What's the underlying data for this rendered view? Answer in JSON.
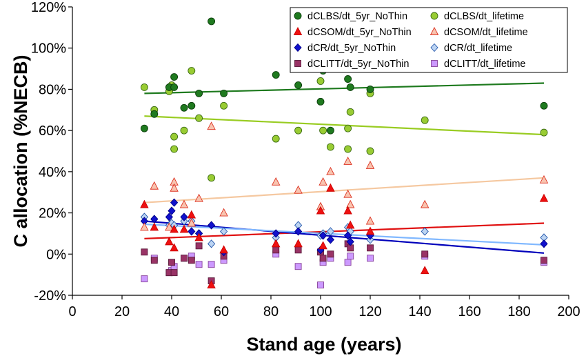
{
  "chart_data": {
    "type": "scatter",
    "xlabel": "Stand age (years)",
    "ylabel": "C allocation (%NECB)",
    "xlim": [
      0,
      200
    ],
    "ylim": [
      -20,
      120
    ],
    "x_ticks": [
      0,
      20,
      40,
      60,
      80,
      100,
      120,
      140,
      160,
      180,
      200
    ],
    "x_tick_labels": [
      "0",
      "20",
      "40",
      "60",
      "80",
      "100",
      "120",
      "140",
      "160",
      "180",
      "200"
    ],
    "y_ticks": [
      -20,
      0,
      20,
      40,
      60,
      80,
      100,
      120
    ],
    "y_tick_labels": [
      "-20%",
      "0%",
      "20%",
      "40%",
      "60%",
      "80%",
      "100%",
      "120%"
    ],
    "grid": false,
    "legend_position": "top-right",
    "series": [
      {
        "name": "dCLBS/dt_5yr_NoThin",
        "marker": "circle",
        "color": "#1f7a1f",
        "stroke": "#0b3d0b",
        "points": [
          [
            29,
            61
          ],
          [
            33,
            68
          ],
          [
            39,
            81
          ],
          [
            41,
            86
          ],
          [
            41,
            81
          ],
          [
            45,
            71
          ],
          [
            48,
            72
          ],
          [
            51,
            78
          ],
          [
            56,
            113
          ],
          [
            61,
            78
          ],
          [
            82,
            87
          ],
          [
            91,
            82
          ],
          [
            100,
            74
          ],
          [
            101,
            89
          ],
          [
            104,
            60
          ],
          [
            111,
            85
          ],
          [
            112,
            81
          ],
          [
            120,
            80
          ],
          [
            190,
            72
          ]
        ],
        "trend": [
          [
            29,
            78
          ],
          [
            190,
            83
          ]
        ],
        "trend_color": "#1e7a1e"
      },
      {
        "name": "dCLBS/dt_lifetime",
        "marker": "circle",
        "color": "#99cc33",
        "stroke": "#3b6b12",
        "points": [
          [
            29,
            81
          ],
          [
            33,
            70
          ],
          [
            39,
            79
          ],
          [
            40,
            82
          ],
          [
            41,
            51
          ],
          [
            41,
            57
          ],
          [
            45,
            60
          ],
          [
            48,
            89
          ],
          [
            51,
            66
          ],
          [
            56,
            37
          ],
          [
            61,
            72
          ],
          [
            82,
            56
          ],
          [
            91,
            60
          ],
          [
            100,
            84
          ],
          [
            101,
            60
          ],
          [
            104,
            52
          ],
          [
            111,
            61
          ],
          [
            111,
            51
          ],
          [
            112,
            69
          ],
          [
            120,
            50
          ],
          [
            120,
            78
          ],
          [
            142,
            65
          ],
          [
            190,
            59
          ]
        ],
        "trend": [
          [
            29,
            67
          ],
          [
            190,
            58
          ]
        ],
        "trend_color": "#99cc22"
      },
      {
        "name": "dCSOM/dt_5yr_NoThin",
        "marker": "triangle",
        "color": "#ee1111",
        "stroke": "#cc0000",
        "points": [
          [
            29,
            24
          ],
          [
            33,
            13
          ],
          [
            39,
            6
          ],
          [
            41,
            3
          ],
          [
            41,
            12
          ],
          [
            45,
            12
          ],
          [
            48,
            19
          ],
          [
            51,
            8
          ],
          [
            56,
            -15
          ],
          [
            61,
            2
          ],
          [
            82,
            5
          ],
          [
            91,
            5
          ],
          [
            100,
            21
          ],
          [
            101,
            4
          ],
          [
            104,
            32
          ],
          [
            111,
            21
          ],
          [
            112,
            14
          ],
          [
            120,
            11
          ],
          [
            142,
            -8
          ],
          [
            190,
            27
          ]
        ],
        "trend": [
          [
            29,
            7.5
          ],
          [
            190,
            15
          ]
        ],
        "trend_color": "#e01010"
      },
      {
        "name": "dCSOM/dt_lifetime",
        "marker": "triangle",
        "color": "#f8c4b0",
        "stroke": "#dd3322",
        "points": [
          [
            29,
            13
          ],
          [
            33,
            33
          ],
          [
            39,
            13
          ],
          [
            41,
            35
          ],
          [
            41,
            32
          ],
          [
            45,
            24
          ],
          [
            48,
            15
          ],
          [
            51,
            27
          ],
          [
            56,
            62
          ],
          [
            61,
            20
          ],
          [
            82,
            35
          ],
          [
            91,
            31
          ],
          [
            100,
            23
          ],
          [
            101,
            35
          ],
          [
            104,
            40
          ],
          [
            111,
            45
          ],
          [
            111,
            29
          ],
          [
            112,
            24
          ],
          [
            120,
            16
          ],
          [
            120,
            43
          ],
          [
            142,
            24
          ],
          [
            190,
            36
          ]
        ],
        "trend": [
          [
            29,
            25
          ],
          [
            190,
            37
          ]
        ],
        "trend_color": "#f5c8a0"
      },
      {
        "name": "dCR/dt_5yr_NoThin",
        "marker": "diamond",
        "color": "#1111cc",
        "stroke": "#000088",
        "points": [
          [
            29,
            16
          ],
          [
            33,
            17
          ],
          [
            39,
            18
          ],
          [
            40,
            21
          ],
          [
            41,
            25
          ],
          [
            45,
            18
          ],
          [
            48,
            11
          ],
          [
            51,
            10
          ],
          [
            56,
            14
          ],
          [
            61,
            1
          ],
          [
            82,
            10
          ],
          [
            91,
            11
          ],
          [
            100,
            2
          ],
          [
            101,
            9
          ],
          [
            104,
            7
          ],
          [
            111,
            9
          ],
          [
            112,
            6
          ],
          [
            120,
            9
          ],
          [
            190,
            5
          ]
        ],
        "trend": [
          [
            29,
            16
          ],
          [
            190,
            0.5
          ]
        ],
        "trend_color": "#0000bb"
      },
      {
        "name": "dCR/dt_lifetime",
        "marker": "diamond",
        "color": "#bcd4f2",
        "stroke": "#2255aa",
        "points": [
          [
            29,
            18
          ],
          [
            33,
            17
          ],
          [
            39,
            14
          ],
          [
            40,
            15
          ],
          [
            41,
            14
          ],
          [
            45,
            16
          ],
          [
            48,
            16
          ],
          [
            51,
            10
          ],
          [
            56,
            5
          ],
          [
            61,
            11
          ],
          [
            82,
            8
          ],
          [
            91,
            14
          ],
          [
            100,
            9
          ],
          [
            101,
            10
          ],
          [
            104,
            11
          ],
          [
            111,
            13
          ],
          [
            112,
            11
          ],
          [
            120,
            7
          ],
          [
            142,
            11
          ],
          [
            190,
            8
          ]
        ],
        "trend": [
          [
            29,
            14.5
          ],
          [
            190,
            4.5
          ]
        ],
        "trend_color": "#80b8ff"
      },
      {
        "name": "dCLITT/dt_5yr_NoThin",
        "marker": "square",
        "color": "#993366",
        "stroke": "#5a1a3a",
        "points": [
          [
            29,
            1
          ],
          [
            33,
            -3
          ],
          [
            39,
            -9
          ],
          [
            40,
            -4
          ],
          [
            41,
            -9
          ],
          [
            45,
            -2
          ],
          [
            48,
            -3
          ],
          [
            51,
            4
          ],
          [
            56,
            -13
          ],
          [
            61,
            -1
          ],
          [
            82,
            2
          ],
          [
            91,
            2
          ],
          [
            100,
            1
          ],
          [
            101,
            -2
          ],
          [
            104,
            0
          ],
          [
            111,
            5
          ],
          [
            112,
            3
          ],
          [
            120,
            3
          ],
          [
            142,
            0
          ],
          [
            190,
            -3
          ]
        ],
        "trend": null
      },
      {
        "name": "dCLITT/dt_lifetime",
        "marker": "square",
        "color": "#cc99ff",
        "stroke": "#884499",
        "points": [
          [
            29,
            -12
          ],
          [
            33,
            -2
          ],
          [
            39,
            -9
          ],
          [
            40,
            -8
          ],
          [
            41,
            -6
          ],
          [
            45,
            -2
          ],
          [
            48,
            -1
          ],
          [
            51,
            -5
          ],
          [
            56,
            -5
          ],
          [
            61,
            -3
          ],
          [
            82,
            0
          ],
          [
            91,
            -6
          ],
          [
            100,
            -15
          ],
          [
            101,
            -4
          ],
          [
            104,
            -2
          ],
          [
            111,
            -4
          ],
          [
            112,
            -1
          ],
          [
            120,
            -2
          ],
          [
            142,
            -1
          ],
          [
            190,
            -4
          ]
        ],
        "trend": null
      }
    ]
  }
}
